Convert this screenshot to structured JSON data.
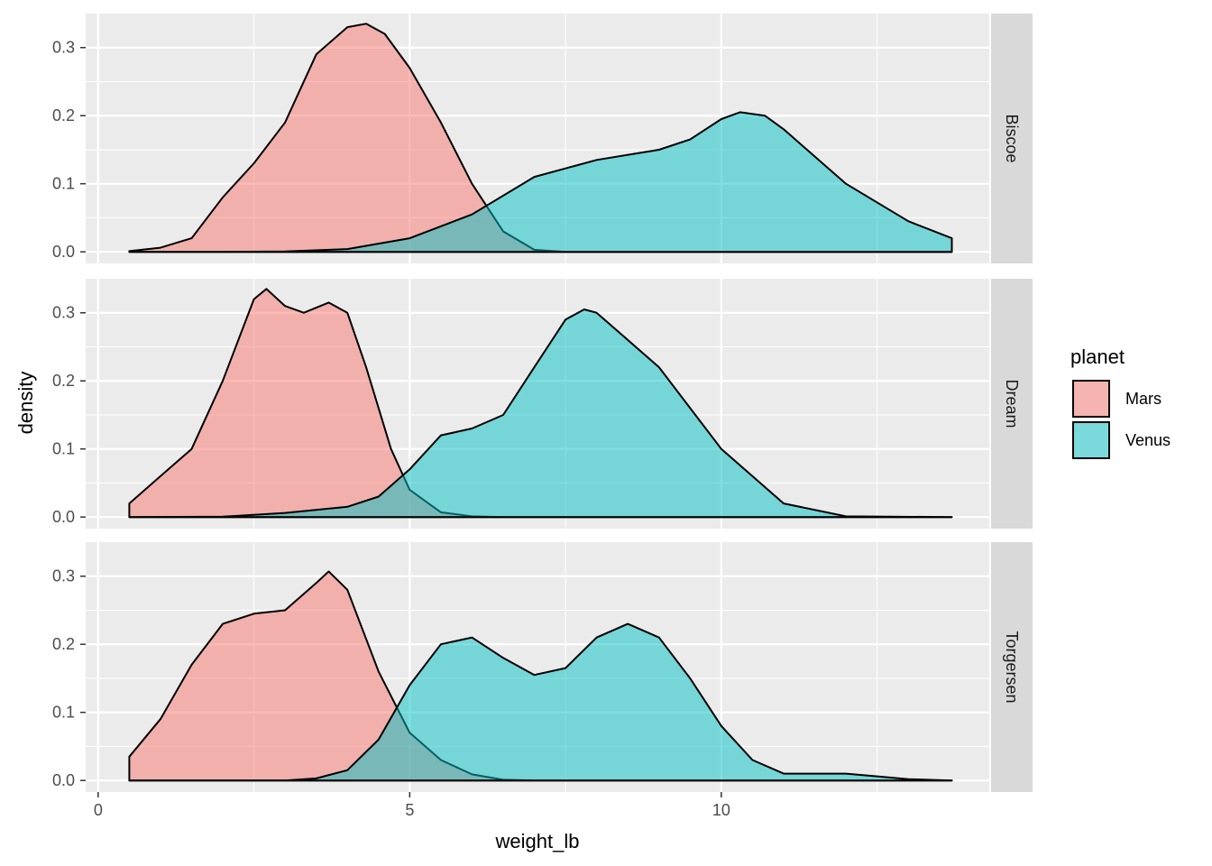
{
  "chart_data": {
    "type": "area",
    "subtype": "faceted density",
    "xlabel": "weight_lb",
    "ylabel": "density",
    "xlim": [
      -0.2,
      14.3
    ],
    "ylim": [
      -0.017,
      0.35
    ],
    "x_ticks": [
      0,
      5,
      10
    ],
    "y_ticks": [
      0.0,
      0.1,
      0.2,
      0.3
    ],
    "y_tick_labels": [
      "0.0",
      "0.1",
      "0.2",
      "0.3"
    ],
    "legend": {
      "title": "planet",
      "position": "right",
      "entries": [
        {
          "name": "Mars",
          "color": "#F8766D"
        },
        {
          "name": "Venus",
          "color": "#00BFC4"
        }
      ]
    },
    "colors": {
      "Mars": "#F8766D",
      "Venus": "#00BFC4",
      "panel_bg": "#EBEBEB",
      "strip_bg": "#D9D9D9",
      "grid": "#FFFFFF"
    },
    "fill_alpha": 0.5,
    "facets": [
      {
        "label": "Biscoe",
        "series": [
          {
            "name": "Mars",
            "x": [
              0.5,
              1.0,
              1.5,
              2.0,
              2.5,
              3.0,
              3.5,
              4.0,
              4.3,
              4.6,
              5.0,
              5.5,
              6.0,
              6.5,
              7.0,
              7.5,
              8.0,
              9.0,
              10.0,
              13.7
            ],
            "y": [
              0.001,
              0.006,
              0.02,
              0.08,
              0.13,
              0.19,
              0.29,
              0.33,
              0.335,
              0.32,
              0.27,
              0.19,
              0.1,
              0.03,
              0.003,
              0.0,
              0.0,
              0.0,
              0.0,
              0.0
            ]
          },
          {
            "name": "Venus",
            "x": [
              0.5,
              2.0,
              3.0,
              4.0,
              5.0,
              6.0,
              7.0,
              8.0,
              9.0,
              9.5,
              10.0,
              10.3,
              10.7,
              11.0,
              12.0,
              13.0,
              13.7
            ],
            "y": [
              0.0,
              0.0,
              0.0005,
              0.004,
              0.02,
              0.055,
              0.11,
              0.135,
              0.15,
              0.165,
              0.195,
              0.205,
              0.2,
              0.18,
              0.1,
              0.045,
              0.02
            ]
          }
        ]
      },
      {
        "label": "Dream",
        "series": [
          {
            "name": "Mars",
            "x": [
              0.5,
              1.0,
              1.5,
              2.0,
              2.5,
              2.7,
              3.0,
              3.3,
              3.7,
              4.0,
              4.3,
              4.7,
              5.0,
              5.5,
              6.0,
              6.5,
              7.0,
              13.7
            ],
            "y": [
              0.02,
              0.06,
              0.1,
              0.2,
              0.32,
              0.335,
              0.31,
              0.3,
              0.315,
              0.3,
              0.22,
              0.1,
              0.04,
              0.007,
              0.001,
              0.0,
              0.0,
              0.0
            ]
          },
          {
            "name": "Venus",
            "x": [
              0.5,
              2.0,
              3.0,
              4.0,
              4.5,
              5.0,
              5.5,
              6.0,
              6.5,
              7.0,
              7.5,
              7.8,
              8.0,
              8.5,
              9.0,
              9.5,
              10.0,
              11.0,
              12.0,
              13.7
            ],
            "y": [
              0.0,
              0.0005,
              0.006,
              0.015,
              0.03,
              0.07,
              0.12,
              0.13,
              0.15,
              0.22,
              0.29,
              0.305,
              0.3,
              0.26,
              0.22,
              0.16,
              0.1,
              0.02,
              0.001,
              0.0
            ]
          }
        ]
      },
      {
        "label": "Torgersen",
        "series": [
          {
            "name": "Mars",
            "x": [
              0.5,
              1.0,
              1.5,
              2.0,
              2.5,
              3.0,
              3.5,
              3.7,
              4.0,
              4.5,
              5.0,
              5.5,
              6.0,
              6.5,
              7.0,
              13.7
            ],
            "y": [
              0.035,
              0.09,
              0.17,
              0.23,
              0.245,
              0.25,
              0.29,
              0.307,
              0.28,
              0.16,
              0.07,
              0.03,
              0.009,
              0.001,
              0.0,
              0.0
            ]
          },
          {
            "name": "Venus",
            "x": [
              0.5,
              2.0,
              3.0,
              3.5,
              4.0,
              4.5,
              5.0,
              5.5,
              6.0,
              6.5,
              7.0,
              7.5,
              8.0,
              8.5,
              9.0,
              9.5,
              10.0,
              10.5,
              11.0,
              12.0,
              12.5,
              13.0,
              13.7
            ],
            "y": [
              0.0,
              0.0,
              0.0,
              0.003,
              0.015,
              0.06,
              0.14,
              0.2,
              0.21,
              0.18,
              0.155,
              0.165,
              0.21,
              0.23,
              0.21,
              0.15,
              0.08,
              0.03,
              0.01,
              0.01,
              0.006,
              0.002,
              0.0
            ]
          }
        ]
      }
    ]
  }
}
